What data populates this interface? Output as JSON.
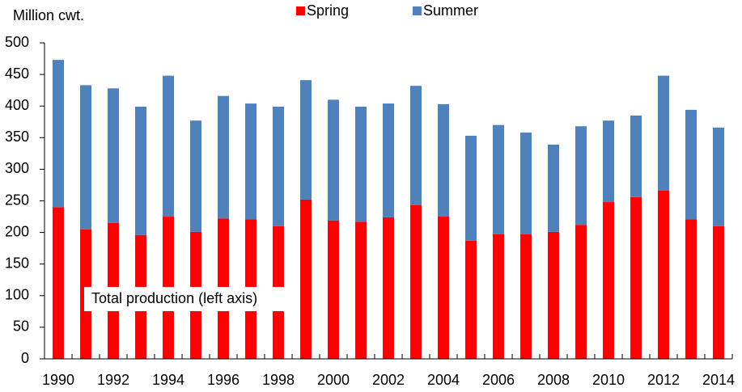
{
  "chart_data": {
    "type": "stacked_bar",
    "y_axis_label": "Million cwt.",
    "annotation": "Total production (left axis)",
    "categories": [
      "1990",
      null,
      "1992",
      null,
      "1994",
      null,
      "1996",
      null,
      "1998",
      null,
      "2000",
      null,
      "2002",
      null,
      "2004",
      null,
      "2006",
      null,
      "2008",
      null,
      "2010",
      null,
      "2012",
      null,
      "2014"
    ],
    "series": [
      {
        "name": "Spring",
        "color": "#ff0000",
        "values": [
          240,
          205,
          215,
          196,
          225,
          201,
          222,
          221,
          210,
          252,
          219,
          217,
          224,
          243,
          225,
          187,
          197,
          197,
          201,
          212,
          248,
          256,
          266,
          221,
          210
        ]
      },
      {
        "name": "Summer",
        "color": "#4f81bd",
        "values": [
          233,
          228,
          213,
          203,
          223,
          176,
          194,
          183,
          189,
          189,
          191,
          182,
          180,
          189,
          178,
          166,
          173,
          161,
          138,
          156,
          129,
          129,
          182,
          173,
          156
        ]
      }
    ],
    "ylim": [
      0,
      500
    ],
    "yticks": [
      0,
      50,
      100,
      150,
      200,
      250,
      300,
      350,
      400,
      450,
      500
    ],
    "legend": "top"
  }
}
